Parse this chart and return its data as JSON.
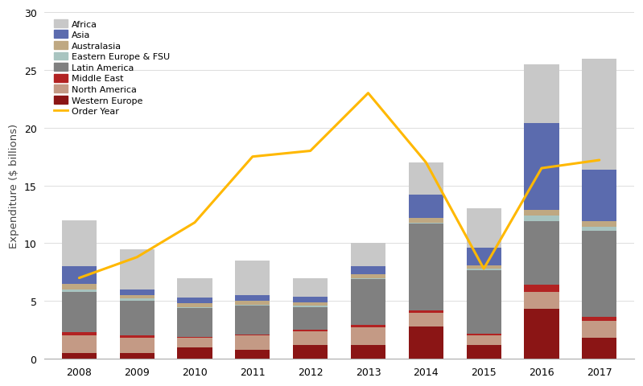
{
  "years": [
    2008,
    2009,
    2010,
    2011,
    2012,
    2013,
    2014,
    2015,
    2016,
    2017
  ],
  "regions": [
    "Western Europe",
    "North America",
    "Middle East",
    "Latin America",
    "Eastern Europe & FSU",
    "Australasia",
    "Asia",
    "Africa"
  ],
  "colors": [
    "#8B1515",
    "#C49A85",
    "#B22222",
    "#808080",
    "#A8C4C0",
    "#BFA882",
    "#5B6BAE",
    "#C8C8C8"
  ],
  "data": {
    "Western Europe": [
      0.5,
      0.5,
      1.0,
      0.8,
      1.2,
      1.2,
      2.8,
      1.2,
      4.3,
      1.8
    ],
    "North America": [
      1.5,
      1.3,
      0.8,
      1.2,
      1.2,
      1.5,
      1.2,
      0.8,
      1.5,
      1.5
    ],
    "Middle East": [
      0.3,
      0.2,
      0.1,
      0.1,
      0.1,
      0.2,
      0.2,
      0.2,
      0.6,
      0.3
    ],
    "Latin America": [
      3.5,
      3.0,
      2.5,
      2.5,
      2.0,
      4.0,
      7.5,
      5.5,
      5.5,
      7.5
    ],
    "Eastern Europe & FSU": [
      0.2,
      0.2,
      0.1,
      0.1,
      0.1,
      0.1,
      0.1,
      0.1,
      0.5,
      0.3
    ],
    "Australasia": [
      0.5,
      0.3,
      0.3,
      0.3,
      0.3,
      0.3,
      0.4,
      0.3,
      0.5,
      0.5
    ],
    "Asia": [
      1.5,
      0.5,
      0.5,
      0.5,
      0.5,
      0.7,
      2.0,
      1.5,
      7.5,
      4.5
    ],
    "Africa": [
      4.0,
      3.5,
      1.7,
      3.0,
      1.6,
      2.0,
      2.8,
      3.4,
      5.1,
      9.6
    ]
  },
  "order_year": [
    7.0,
    8.8,
    11.8,
    17.5,
    18.0,
    23.0,
    17.0,
    7.8,
    16.5,
    17.2
  ],
  "ylabel": "Expenditure ($ billions)",
  "ylim": [
    0,
    30
  ],
  "yticks": [
    0,
    5,
    10,
    15,
    20,
    25,
    30
  ],
  "line_color": "#FFB800",
  "line_label": "Order Year",
  "background_color": "#FFFFFF",
  "grid_color": "#D8D8D8"
}
